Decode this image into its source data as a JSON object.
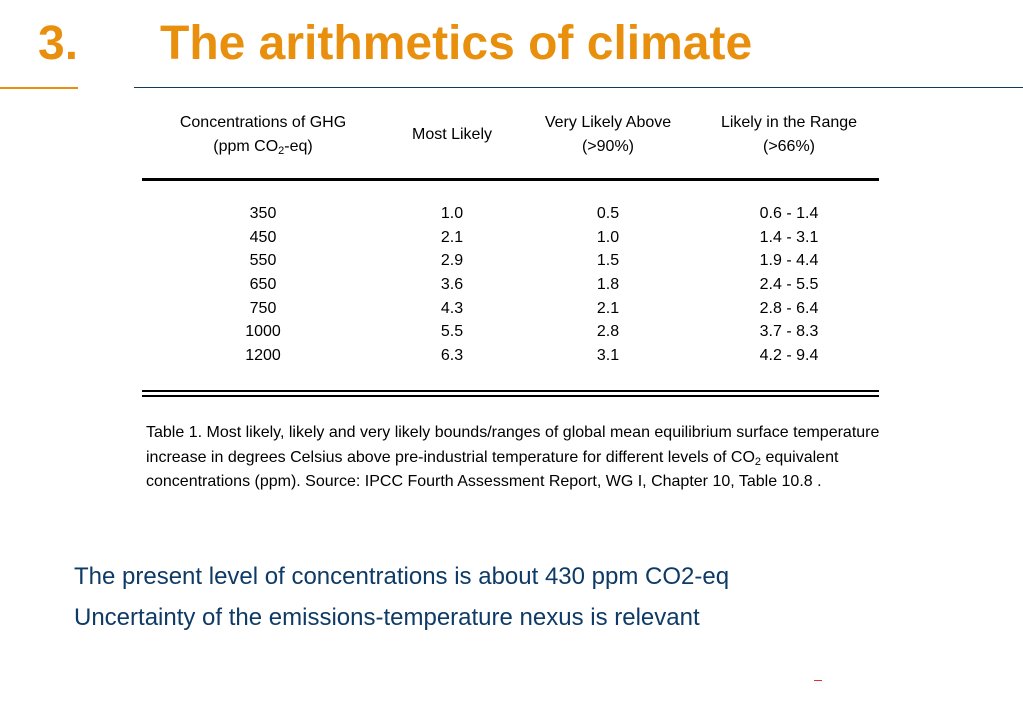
{
  "slide": {
    "number": "3.",
    "title": "The arithmetics of climate"
  },
  "table": {
    "headers": {
      "col1_line1": "Concentrations of GHG",
      "col1_line2_pre": "(ppm CO",
      "col1_line2_sub": "2",
      "col1_line2_post": "-eq)",
      "col2": "Most Likely",
      "col3_line1": "Very Likely Above",
      "col3_line2": "(>90%)",
      "col4_line1": "Likely in the Range",
      "col4_line2": "(>66%)"
    },
    "rows": [
      {
        "conc": "350",
        "most_likely": "1.0",
        "very_likely_above": "0.5",
        "likely_range": "0.6 - 1.4"
      },
      {
        "conc": "450",
        "most_likely": "2.1",
        "very_likely_above": "1.0",
        "likely_range": "1.4 - 3.1"
      },
      {
        "conc": "550",
        "most_likely": "2.9",
        "very_likely_above": "1.5",
        "likely_range": "1.9 - 4.4"
      },
      {
        "conc": "650",
        "most_likely": "3.6",
        "very_likely_above": "1.8",
        "likely_range": "2.4 - 5.5"
      },
      {
        "conc": "750",
        "most_likely": "4.3",
        "very_likely_above": "2.1",
        "likely_range": "2.8 - 6.4"
      },
      {
        "conc": "1000",
        "most_likely": "5.5",
        "very_likely_above": "2.8",
        "likely_range": "3.7 - 8.3"
      },
      {
        "conc": "1200",
        "most_likely": "6.3",
        "very_likely_above": "3.1",
        "likely_range": "4.2 - 9.4"
      }
    ]
  },
  "caption": {
    "part1": "Table 1. Most likely, likely and very likely bounds/ranges of global mean equilibrium surface temperature increase in degrees Celsius above pre-industrial temperature for different levels of CO",
    "sub": "2",
    "part2": " equivalent concentrations (ppm). Source: IPCC Fourth Assessment Report, WG I, Chapter 10, Table 10.8 ."
  },
  "bullets": [
    "The present level of concentrations is about 430 ppm CO2-eq",
    "Uncertainty of the emissions-temperature nexus is relevant"
  ],
  "colors": {
    "title": "#E8900E",
    "bullets": "#0E3A66",
    "divider": "#0E3A5E"
  }
}
